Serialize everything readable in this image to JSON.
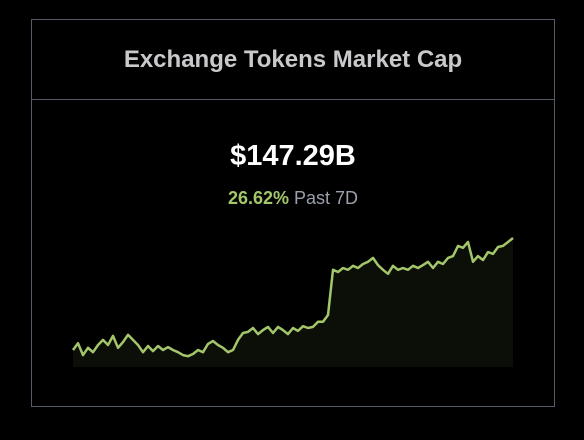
{
  "header": {
    "title": "Exchange Tokens Market Cap"
  },
  "chart_data": {
    "type": "area",
    "value": "$147.29B",
    "change": "26.62%",
    "period": "Past 7D",
    "color": "#a3c66b",
    "values": [
      116.3,
      118.2,
      114.9,
      116.9,
      115.7,
      117.7,
      119.1,
      117.7,
      120.2,
      116.9,
      118.5,
      120.5,
      119.1,
      117.7,
      115.7,
      117.4,
      116.0,
      117.4,
      116.3,
      117.1,
      116.3,
      115.7,
      114.9,
      114.6,
      115.2,
      116.3,
      115.7,
      118.0,
      118.8,
      117.7,
      116.9,
      115.7,
      116.3,
      119.1,
      121.0,
      121.3,
      122.4,
      120.7,
      121.8,
      122.7,
      121.0,
      122.7,
      121.8,
      120.7,
      122.4,
      121.6,
      122.9,
      122.4,
      122.7,
      124.1,
      124.1,
      126.0,
      138.5,
      137.9,
      139.0,
      138.5,
      139.6,
      139.0,
      140.1,
      140.7,
      141.8,
      139.8,
      138.5,
      137.4,
      139.6,
      138.5,
      139.0,
      138.5,
      139.6,
      139.0,
      139.8,
      140.7,
      139.0,
      140.7,
      140.1,
      141.8,
      142.3,
      145.1,
      144.6,
      146.2,
      140.7,
      142.3,
      141.2,
      143.4,
      142.9,
      144.8,
      145.1,
      146.2,
      147.3
    ],
    "ylim": [
      111.6,
      147.3
    ]
  }
}
